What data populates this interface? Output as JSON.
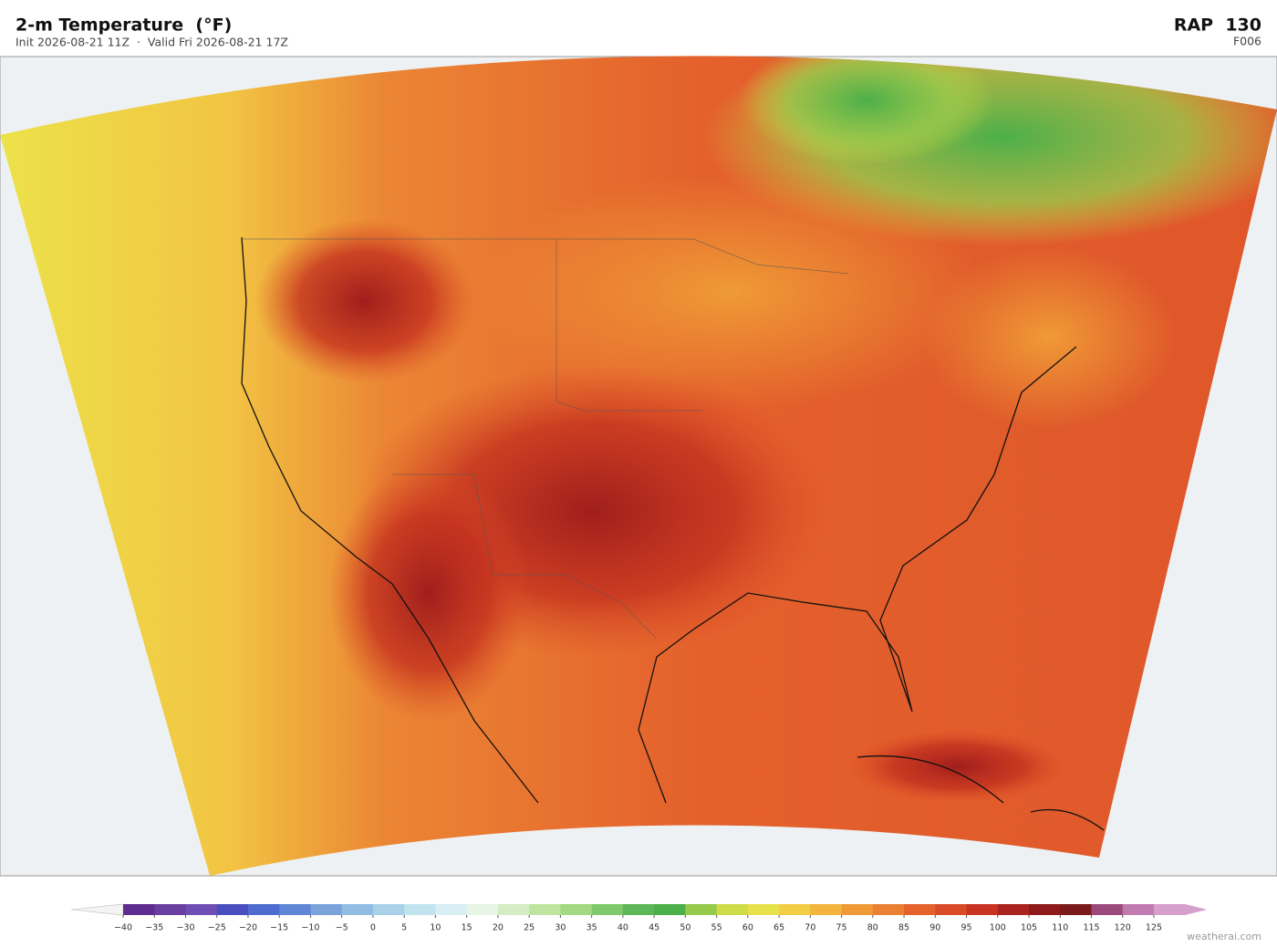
{
  "header": {
    "title": "2-m Temperature  (°F)",
    "subtitle": "Init 2026-08-21 11Z  ·  Valid Fri 2026-08-21 17Z",
    "model": "RAP  130",
    "forecast_hour": "F006"
  },
  "colorbar": {
    "ticks": [
      {
        "value": -40,
        "label": "−40"
      },
      {
        "value": -35,
        "label": "−35"
      },
      {
        "value": -30,
        "label": "−30"
      },
      {
        "value": -25,
        "label": "−25"
      },
      {
        "value": -20,
        "label": "−20"
      },
      {
        "value": -15,
        "label": "−15"
      },
      {
        "value": -10,
        "label": "−10"
      },
      {
        "value": -5,
        "label": "−5"
      },
      0,
      5,
      10,
      15,
      20,
      25,
      30,
      35,
      40,
      45,
      50,
      55,
      60,
      65,
      70,
      75,
      80,
      85,
      90,
      95,
      100,
      105,
      110,
      115,
      120,
      125
    ],
    "colors": [
      "#5e2c8f",
      "#6b3fa0",
      "#6f4eb5",
      "#4a4fc0",
      "#4e6bcf",
      "#5f86d6",
      "#7aa3dc",
      "#91bde2",
      "#a9d2ea",
      "#c2e3f0",
      "#d7eef2",
      "#e6f5e6",
      "#d4edc4",
      "#bfe49f",
      "#a2d981",
      "#7fca6a",
      "#5db657",
      "#4caf4a",
      "#97c94c",
      "#cddc47",
      "#e8e24a",
      "#f3cd45",
      "#f3b53d",
      "#ef9a36",
      "#eb7f33",
      "#e5622c",
      "#d94b26",
      "#c83322",
      "#aa231f",
      "#8f1a1c",
      "#7a1a1c",
      "#9c4a7c",
      "#c27bb0",
      "#d7a0cc"
    ]
  },
  "credit": "weatherai.com"
}
